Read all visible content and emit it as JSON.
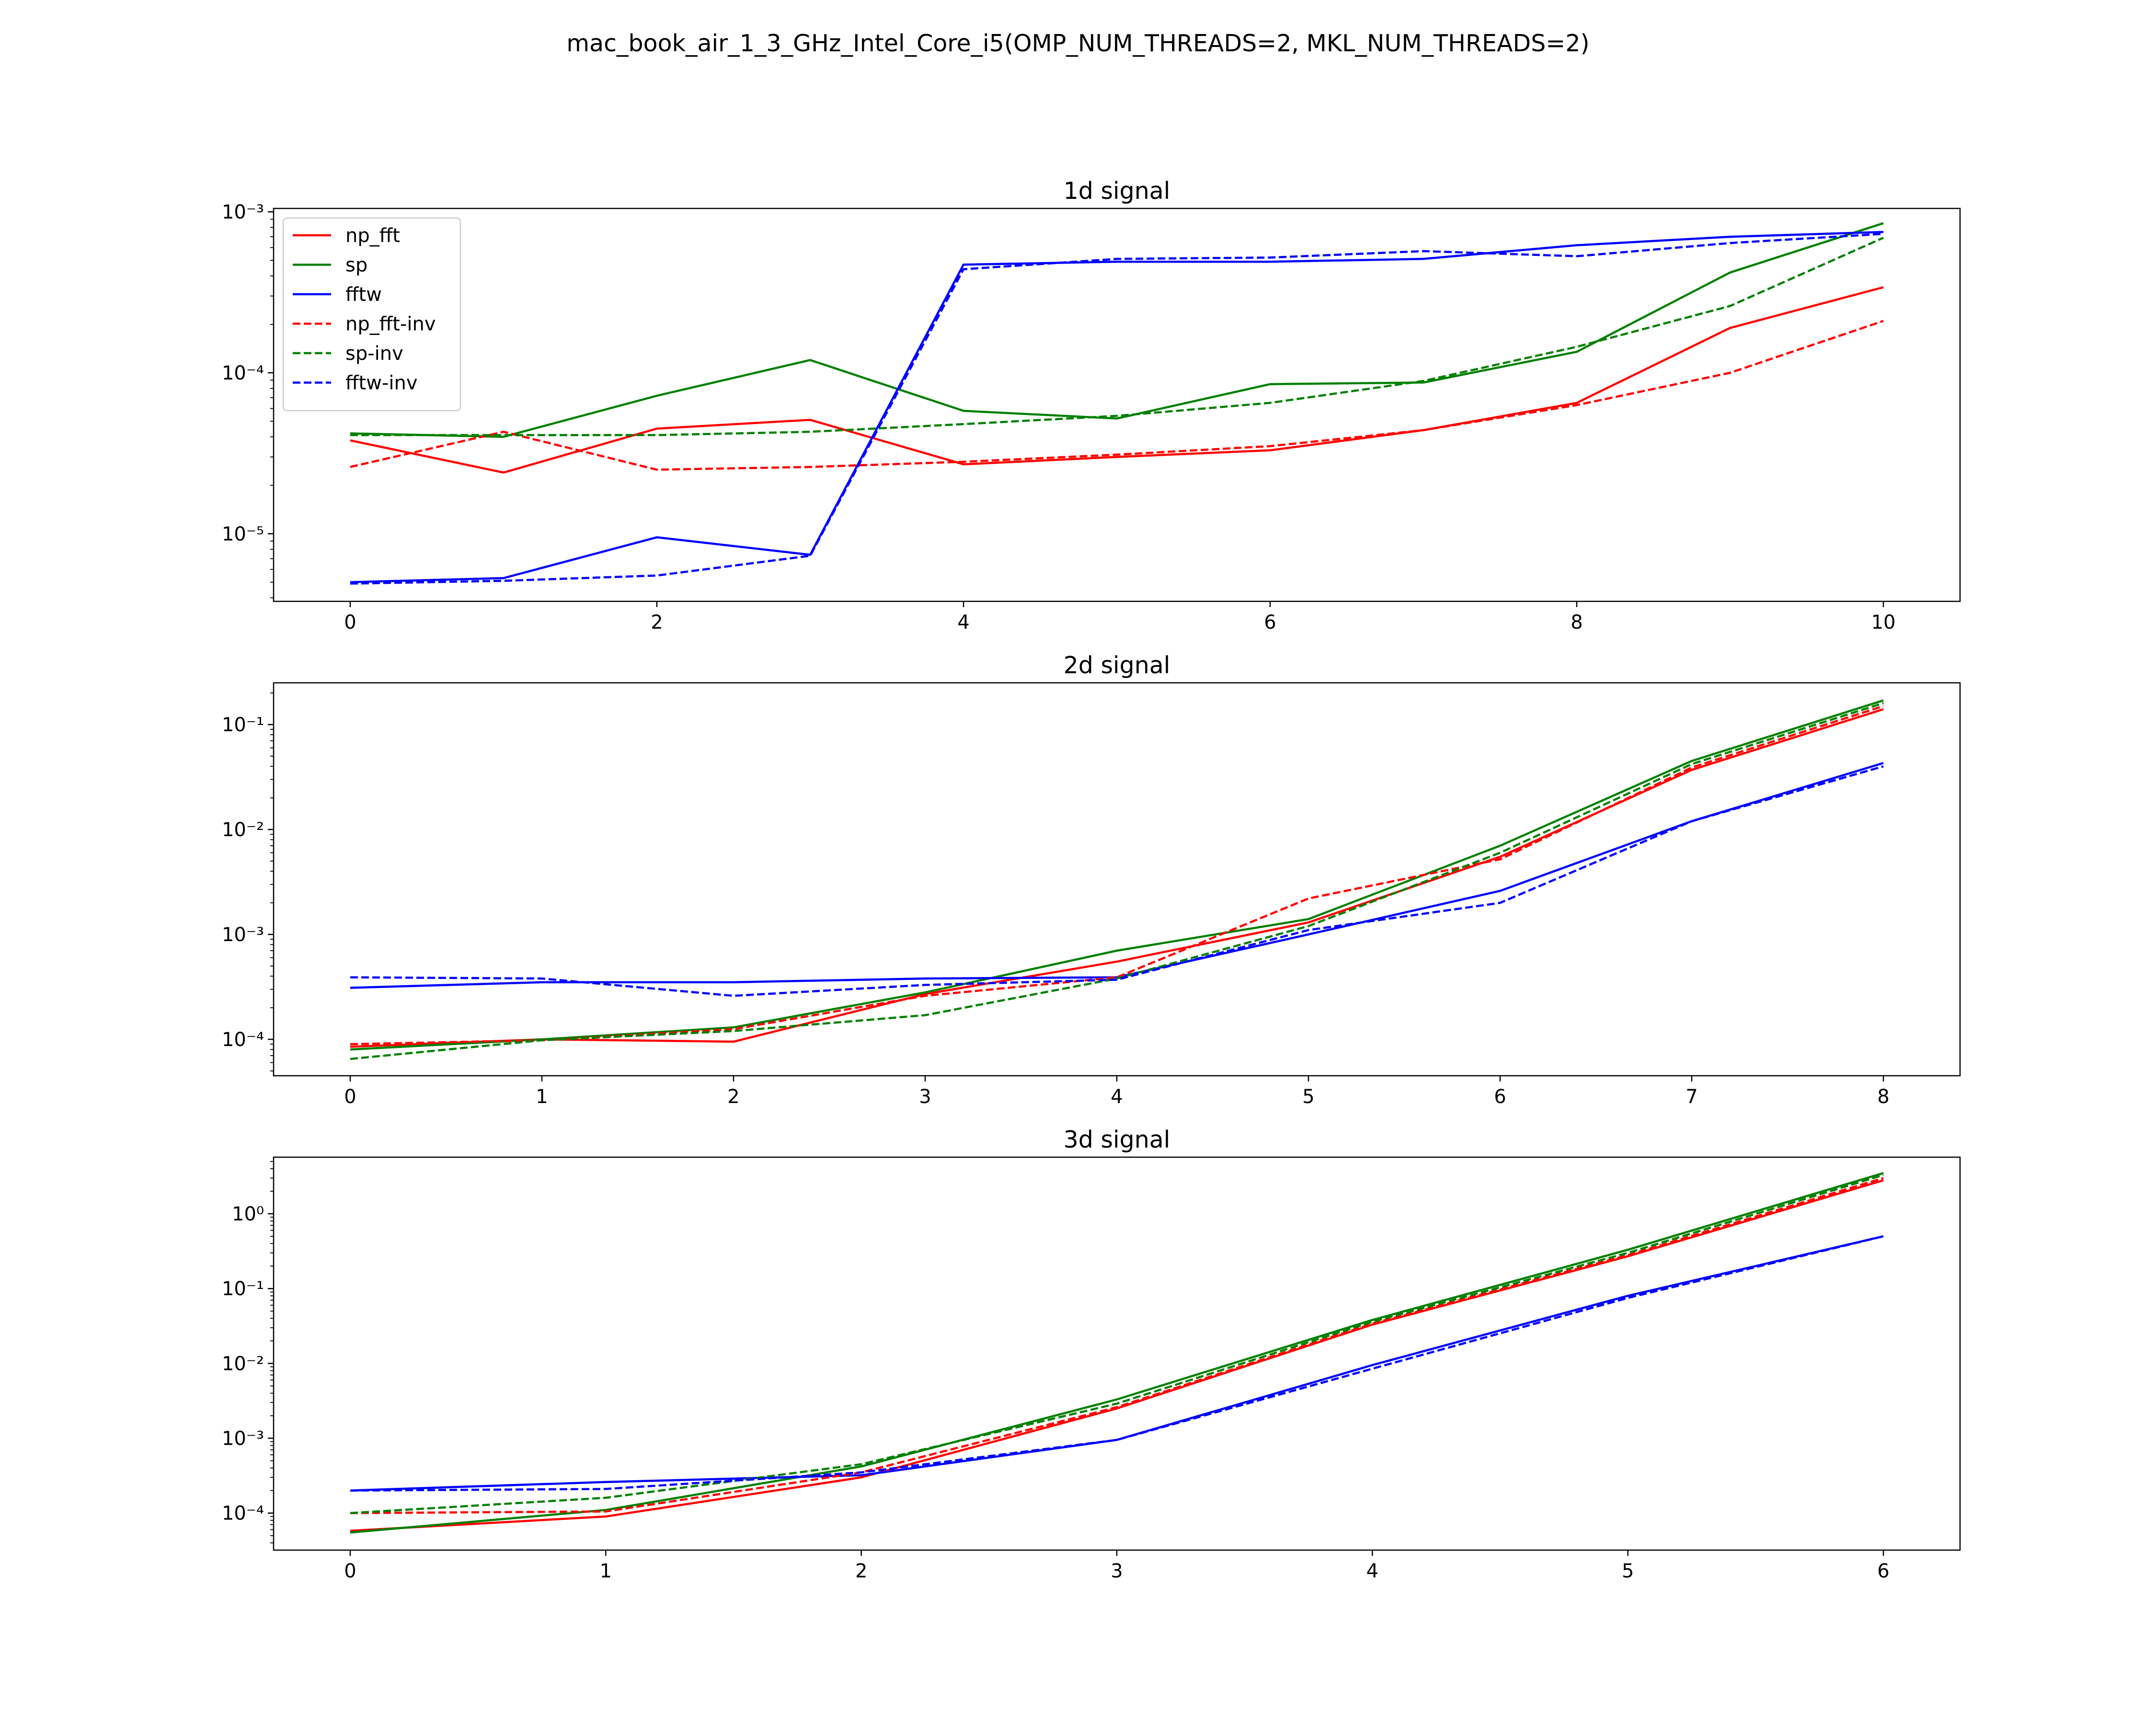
{
  "figure": {
    "suptitle": "mac_book_air_1_3_GHz_Intel_Core_i5(OMP_NUM_THREADS=2, MKL_NUM_THREADS=2)"
  },
  "legend_entries": [
    {
      "name": "np_fft",
      "color": "#ff0000",
      "style": "solid"
    },
    {
      "name": "sp",
      "color": "#008000",
      "style": "solid"
    },
    {
      "name": "fftw",
      "color": "#0000ff",
      "style": "solid"
    },
    {
      "name": "np_fft-inv",
      "color": "#ff0000",
      "style": "dashed"
    },
    {
      "name": "sp-inv",
      "color": "#008000",
      "style": "dashed"
    },
    {
      "name": "fftw-inv",
      "color": "#0000ff",
      "style": "dashed"
    }
  ],
  "chart_data": [
    {
      "type": "line",
      "title": "1d signal",
      "xlabel": "",
      "ylabel": "",
      "yscale": "log",
      "xlim": [
        -0.5,
        10.5
      ],
      "ylim": [
        3.8e-06,
        0.00105
      ],
      "xticks": [
        0,
        2,
        4,
        6,
        8,
        10
      ],
      "xtick_labels": [
        "0",
        "2",
        "4",
        "6",
        "8",
        "10"
      ],
      "yticks": [
        1e-05,
        0.0001,
        0.001
      ],
      "ytick_labels": [
        "10⁻⁵",
        "10⁻⁴",
        "10⁻³"
      ],
      "grid": false,
      "legend_position": "upper-left",
      "x": [
        0,
        1,
        2,
        3,
        4,
        5,
        6,
        7,
        8,
        9,
        10
      ],
      "series": [
        {
          "name": "np_fft",
          "color": "#ff0000",
          "style": "solid",
          "values": [
            3.8e-05,
            2.4e-05,
            4.5e-05,
            5.1e-05,
            2.7e-05,
            3e-05,
            3.3e-05,
            4.4e-05,
            6.5e-05,
            0.00019,
            0.00034
          ]
        },
        {
          "name": "sp",
          "color": "#008000",
          "style": "solid",
          "values": [
            4.2e-05,
            4e-05,
            7.2e-05,
            0.00012,
            5.8e-05,
            5.2e-05,
            8.5e-05,
            8.7e-05,
            0.000135,
            0.00042,
            0.00085
          ]
        },
        {
          "name": "fftw",
          "color": "#0000ff",
          "style": "solid",
          "values": [
            5e-06,
            5.3e-06,
            9.5e-06,
            7.4e-06,
            0.00047,
            0.00049,
            0.00049,
            0.00051,
            0.00062,
            0.0007,
            0.00075
          ]
        },
        {
          "name": "np_fft-inv",
          "color": "#ff0000",
          "style": "dashed",
          "values": [
            2.6e-05,
            4.3e-05,
            2.5e-05,
            2.6e-05,
            2.8e-05,
            3.1e-05,
            3.5e-05,
            4.4e-05,
            6.3e-05,
            0.0001,
            0.00021
          ]
        },
        {
          "name": "sp-inv",
          "color": "#008000",
          "style": "dashed",
          "values": [
            4.1e-05,
            4.1e-05,
            4.1e-05,
            4.3e-05,
            4.8e-05,
            5.4e-05,
            6.5e-05,
            8.9e-05,
            0.000145,
            0.00026,
            0.00069
          ]
        },
        {
          "name": "fftw-inv",
          "color": "#0000ff",
          "style": "dashed",
          "values": [
            4.9e-06,
            5.1e-06,
            5.5e-06,
            7.3e-06,
            0.00044,
            0.00051,
            0.00052,
            0.00057,
            0.00053,
            0.00064,
            0.00073
          ]
        }
      ]
    },
    {
      "type": "line",
      "title": "2d signal",
      "xlabel": "",
      "ylabel": "",
      "yscale": "log",
      "xlim": [
        -0.4,
        8.4
      ],
      "ylim": [
        4.5e-05,
        0.25
      ],
      "xticks": [
        0,
        1,
        2,
        3,
        4,
        5,
        6,
        7,
        8
      ],
      "xtick_labels": [
        "0",
        "1",
        "2",
        "3",
        "4",
        "5",
        "6",
        "7",
        "8"
      ],
      "yticks": [
        0.0001,
        0.001,
        0.01,
        0.1
      ],
      "ytick_labels": [
        "10⁻⁴",
        "10⁻³",
        "10⁻²",
        "10⁻¹"
      ],
      "grid": false,
      "x": [
        0,
        1,
        2,
        3,
        4,
        5,
        6,
        7,
        8
      ],
      "series": [
        {
          "name": "np_fft",
          "color": "#ff0000",
          "style": "solid",
          "values": [
            8.5e-05,
            0.0001,
            9.5e-05,
            0.00027,
            0.00055,
            0.0013,
            0.0055,
            0.037,
            0.14
          ]
        },
        {
          "name": "sp",
          "color": "#008000",
          "style": "solid",
          "values": [
            8e-05,
            0.0001,
            0.00013,
            0.00028,
            0.0007,
            0.0014,
            0.007,
            0.045,
            0.17
          ]
        },
        {
          "name": "fftw",
          "color": "#0000ff",
          "style": "solid",
          "values": [
            0.00031,
            0.00035,
            0.00035,
            0.00038,
            0.00039,
            0.001,
            0.0026,
            0.012,
            0.043
          ]
        },
        {
          "name": "np_fft-inv",
          "color": "#ff0000",
          "style": "dashed",
          "values": [
            9e-05,
            9.8e-05,
            0.000125,
            0.00026,
            0.00039,
            0.0022,
            0.0052,
            0.039,
            0.15
          ]
        },
        {
          "name": "sp-inv",
          "color": "#008000",
          "style": "dashed",
          "values": [
            6.5e-05,
            9.8e-05,
            0.00012,
            0.00017,
            0.00038,
            0.0012,
            0.006,
            0.042,
            0.16
          ]
        },
        {
          "name": "fftw-inv",
          "color": "#0000ff",
          "style": "dashed",
          "values": [
            0.00039,
            0.00038,
            0.00026,
            0.00033,
            0.00037,
            0.0011,
            0.002,
            0.012,
            0.04
          ]
        }
      ]
    },
    {
      "type": "line",
      "title": "3d signal",
      "xlabel": "",
      "ylabel": "",
      "yscale": "log",
      "xlim": [
        -0.3,
        6.3
      ],
      "ylim": [
        3.2e-05,
        5.7
      ],
      "xticks": [
        0,
        1,
        2,
        3,
        4,
        5,
        6
      ],
      "xtick_labels": [
        "0",
        "1",
        "2",
        "3",
        "4",
        "5",
        "6"
      ],
      "yticks": [
        0.0001,
        0.001,
        0.01,
        0.1,
        1
      ],
      "ytick_labels": [
        "10⁻⁴",
        "10⁻³",
        "10⁻²",
        "10⁻¹",
        "10⁰"
      ],
      "grid": false,
      "x": [
        0,
        1,
        2,
        3,
        4,
        5,
        6
      ],
      "series": [
        {
          "name": "np_fft",
          "color": "#ff0000",
          "style": "solid",
          "values": [
            5.8e-05,
            9e-05,
            0.0003,
            0.0025,
            0.033,
            0.27,
            2.8
          ]
        },
        {
          "name": "sp",
          "color": "#008000",
          "style": "solid",
          "values": [
            5.5e-05,
            0.00011,
            0.00042,
            0.0033,
            0.038,
            0.33,
            3.5
          ]
        },
        {
          "name": "fftw",
          "color": "#0000ff",
          "style": "solid",
          "values": [
            0.0002,
            0.00026,
            0.00032,
            0.00095,
            0.0095,
            0.08,
            0.5
          ]
        },
        {
          "name": "np_fft-inv",
          "color": "#ff0000",
          "style": "dashed",
          "values": [
            0.0001,
            0.000105,
            0.00035,
            0.0026,
            0.034,
            0.28,
            3.0
          ]
        },
        {
          "name": "sp-inv",
          "color": "#008000",
          "style": "dashed",
          "values": [
            0.0001,
            0.00016,
            0.00045,
            0.0029,
            0.036,
            0.3,
            3.3
          ]
        },
        {
          "name": "fftw-inv",
          "color": "#0000ff",
          "style": "dashed",
          "values": [
            0.0002,
            0.00021,
            0.00035,
            0.00095,
            0.0085,
            0.075,
            0.5
          ]
        }
      ]
    }
  ]
}
